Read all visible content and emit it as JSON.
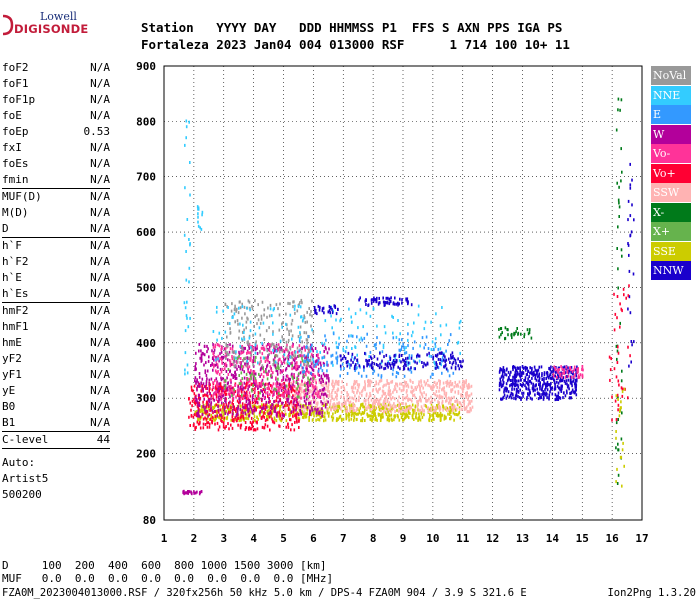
{
  "logo": {
    "line1": "Lowell",
    "line2": "DIGISONDE"
  },
  "header": {
    "row1": "Station   YYYY DAY   DDD HHMMSS P1  FFS S AXN PPS IGA PS",
    "row2": "Fortaleza 2023 Jan04 004 013000 RSF      1 714 100 10+ 11"
  },
  "params": [
    [
      [
        "foF2",
        "N/A"
      ],
      [
        "foF1",
        "N/A"
      ],
      [
        "foF1p",
        "N/A"
      ],
      [
        "foE",
        "N/A"
      ],
      [
        "foEp",
        "0.53"
      ],
      [
        "fxI",
        "N/A"
      ],
      [
        "foEs",
        "N/A"
      ],
      [
        "fmin",
        "N/A"
      ]
    ],
    [
      [
        "MUF(D)",
        "N/A"
      ],
      [
        "M(D)",
        "N/A"
      ],
      [
        "D",
        "N/A"
      ]
    ],
    [
      [
        "h`F",
        "N/A"
      ],
      [
        "h`F2",
        "N/A"
      ],
      [
        "h`E",
        "N/A"
      ],
      [
        "h`Es",
        "N/A"
      ]
    ],
    [
      [
        "hmF2",
        "N/A"
      ],
      [
        "hmF1",
        "N/A"
      ],
      [
        "hmE",
        "N/A"
      ],
      [
        "yF2",
        "N/A"
      ],
      [
        "yF1",
        "N/A"
      ],
      [
        "yE",
        "N/A"
      ],
      [
        "B0",
        "N/A"
      ],
      [
        "B1",
        "N/A"
      ]
    ],
    [
      [
        "C-level",
        "44"
      ]
    ]
  ],
  "auto": {
    "line1": "Auto:",
    "line2": "Artist5",
    "line3": "500200"
  },
  "legend": [
    {
      "label": "NoVal",
      "color": "#999999"
    },
    {
      "label": "NNE",
      "color": "#33ccff"
    },
    {
      "label": "E",
      "color": "#3399ff"
    },
    {
      "label": "W",
      "color": "#b3009b"
    },
    {
      "label": "Vo-",
      "color": "#ff3399"
    },
    {
      "label": "Vo+",
      "color": "#ff0033"
    },
    {
      "label": "SSW",
      "color": "#ffb3b3"
    },
    {
      "label": "X-",
      "color": "#007a1a"
    },
    {
      "label": "X+",
      "color": "#66b34d"
    },
    {
      "label": "SSE",
      "color": "#cccc00"
    },
    {
      "label": "NNW",
      "color": "#1a00cc"
    }
  ],
  "bottom": {
    "line1": "D     100  200  400  600  800 1000 1500 3000 [km]",
    "line2": "MUF   0.0  0.0  0.0  0.0  0.0  0.0  0.0  0.0 [MHz]",
    "line3": "FZA0M_2023004013000.RSF / 320fx256h 50 kHz 5.0 km / DPS-4 FZA0M 904 / 3.9 S 321.6 E",
    "footer": "Ion2Png 1.3.20"
  },
  "chart_data": {
    "type": "scatter",
    "xlim": [
      1,
      17
    ],
    "ylim": [
      80,
      900
    ],
    "xticks": [
      1,
      2,
      3,
      4,
      5,
      6,
      7,
      8,
      9,
      10,
      11,
      12,
      13,
      14,
      15,
      16,
      17
    ],
    "yticks": [
      80,
      200,
      300,
      400,
      500,
      600,
      700,
      800,
      900
    ],
    "grid": true,
    "clusters": [
      {
        "name": "SSE",
        "color": "#cccc00",
        "x": [
          2.0,
          10.9
        ],
        "y": [
          262,
          292
        ],
        "n": 700
      },
      {
        "name": "SSW",
        "color": "#ffb3b3",
        "x": [
          5.0,
          11.3
        ],
        "y": [
          278,
          335
        ],
        "n": 700
      },
      {
        "name": "Vo+",
        "color": "#ff0033",
        "x": [
          1.8,
          5.5
        ],
        "y": [
          245,
          330
        ],
        "n": 450
      },
      {
        "name": "W",
        "color": "#b3009b",
        "x": [
          2.0,
          6.5
        ],
        "y": [
          270,
          400
        ],
        "n": 650
      },
      {
        "name": "Vo-",
        "color": "#ff3399",
        "x": [
          2.6,
          6.2
        ],
        "y": [
          300,
          400
        ],
        "n": 300
      },
      {
        "name": "X+",
        "color": "#66b34d",
        "x": [
          3.0,
          6.0
        ],
        "y": [
          300,
          380
        ],
        "n": 80
      },
      {
        "name": "NoVal",
        "color": "#999999",
        "x": [
          3.0,
          6.0
        ],
        "y": [
          360,
          480
        ],
        "n": 200
      },
      {
        "name": "NNE",
        "color": "#33ccff",
        "x": [
          2.5,
          11.0
        ],
        "y": [
          360,
          470
        ],
        "n": 180
      },
      {
        "name": "E",
        "color": "#3399ff",
        "x": [
          5.5,
          10.8
        ],
        "y": [
          340,
          420
        ],
        "n": 150
      },
      {
        "name": "NNW",
        "color": "#1a00cc",
        "x": [
          6.8,
          11.0
        ],
        "y": [
          355,
          385
        ],
        "n": 160
      },
      {
        "name": "NNW",
        "color": "#1a00cc",
        "x": [
          12.2,
          14.8
        ],
        "y": [
          300,
          360
        ],
        "n": 450
      },
      {
        "name": "NNW",
        "color": "#1a00cc",
        "x": [
          7.5,
          9.3
        ],
        "y": [
          470,
          484
        ],
        "n": 60
      },
      {
        "name": "NNW",
        "color": "#1a00cc",
        "x": [
          6.0,
          6.8
        ],
        "y": [
          455,
          470
        ],
        "n": 30
      },
      {
        "name": "Vo-",
        "color": "#ff3399",
        "x": [
          14.0,
          15.0
        ],
        "y": [
          340,
          360
        ],
        "n": 50
      },
      {
        "name": "X-",
        "color": "#007a1a",
        "x": [
          12.1,
          13.3
        ],
        "y": [
          410,
          430
        ],
        "n": 30
      },
      {
        "name": "NNE",
        "color": "#33ccff",
        "x": [
          1.65,
          1.85
        ],
        "y": [
          340,
          830
        ],
        "n": 30
      },
      {
        "name": "NNE",
        "color": "#33ccff",
        "x": [
          2.1,
          2.3
        ],
        "y": [
          600,
          650
        ],
        "n": 12
      },
      {
        "name": "W",
        "color": "#b3009b",
        "x": [
          1.6,
          2.3
        ],
        "y": [
          130,
          135
        ],
        "n": 25
      },
      {
        "name": "NNW",
        "color": "#1a00cc",
        "x": [
          16.5,
          16.7
        ],
        "y": [
          350,
          730
        ],
        "n": 25
      },
      {
        "name": "X-",
        "color": "#007a1a",
        "x": [
          16.1,
          16.3
        ],
        "y": [
          130,
          860
        ],
        "n": 40
      },
      {
        "name": "Vo+",
        "color": "#ff0033",
        "x": [
          15.8,
          16.6
        ],
        "y": [
          260,
          520
        ],
        "n": 40
      },
      {
        "name": "SSE",
        "color": "#cccc00",
        "x": [
          16.1,
          16.4
        ],
        "y": [
          140,
          320
        ],
        "n": 20
      }
    ]
  }
}
